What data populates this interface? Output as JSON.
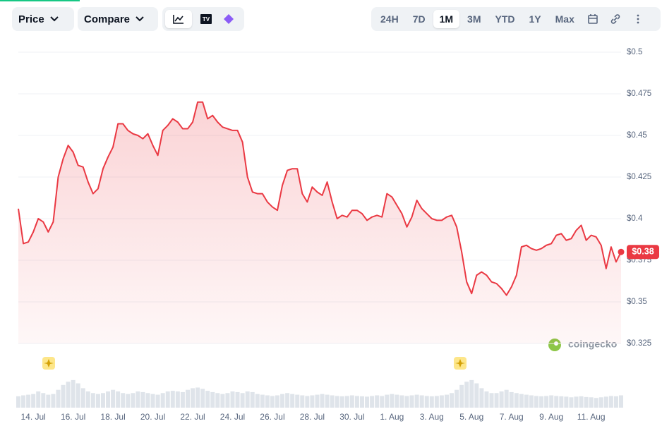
{
  "toolbar": {
    "selectors": [
      "Price",
      "Compare"
    ],
    "ranges": [
      "24H",
      "7D",
      "1M",
      "3M",
      "YTD",
      "1Y",
      "Max"
    ],
    "active_range": "1M"
  },
  "watermark": "coingecko",
  "chart_data": {
    "type": "area",
    "color": "#ea3943",
    "grid": true,
    "ylim": [
      0.325,
      0.5
    ],
    "yticks": [
      {
        "value": 0.325,
        "label": "$0.325"
      },
      {
        "value": 0.35,
        "label": "$0.35"
      },
      {
        "value": 0.375,
        "label": "$0.375"
      },
      {
        "value": 0.4,
        "label": "$0.4"
      },
      {
        "value": 0.425,
        "label": "$0.425"
      },
      {
        "value": 0.45,
        "label": "$0.45"
      },
      {
        "value": 0.475,
        "label": "$0.475"
      },
      {
        "value": 0.5,
        "label": "$0.5"
      }
    ],
    "last_price": {
      "value": 0.38,
      "label": "$0.38"
    },
    "categories": [
      null,
      null,
      null,
      "14. Jul",
      null,
      null,
      null,
      null,
      null,
      null,
      null,
      "16. Jul",
      null,
      null,
      null,
      null,
      null,
      null,
      null,
      "18. Jul",
      null,
      null,
      null,
      null,
      null,
      null,
      null,
      "20. Jul",
      null,
      null,
      null,
      null,
      null,
      null,
      null,
      "22. Jul",
      null,
      null,
      null,
      null,
      null,
      null,
      null,
      "24. Jul",
      null,
      null,
      null,
      null,
      null,
      null,
      null,
      "26. Jul",
      null,
      null,
      null,
      null,
      null,
      null,
      null,
      "28. Jul",
      null,
      null,
      null,
      null,
      null,
      null,
      null,
      "30. Jul",
      null,
      null,
      null,
      null,
      null,
      null,
      null,
      "1. Aug",
      null,
      null,
      null,
      null,
      null,
      null,
      null,
      "3. Aug",
      null,
      null,
      null,
      null,
      null,
      null,
      null,
      "5. Aug",
      null,
      null,
      null,
      null,
      null,
      null,
      null,
      "7. Aug",
      null,
      null,
      null,
      null,
      null,
      null,
      null,
      "9. Aug",
      null,
      null,
      null,
      null,
      null,
      null,
      null,
      "11. Aug",
      null,
      null,
      null,
      null,
      null,
      null
    ],
    "values": [
      0.406,
      0.385,
      0.386,
      0.392,
      0.4,
      0.398,
      0.392,
      0.398,
      0.425,
      0.436,
      0.444,
      0.44,
      0.432,
      0.431,
      0.422,
      0.415,
      0.418,
      0.43,
      0.437,
      0.443,
      0.457,
      0.457,
      0.453,
      0.451,
      0.45,
      0.448,
      0.451,
      0.444,
      0.438,
      0.453,
      0.456,
      0.46,
      0.458,
      0.454,
      0.454,
      0.458,
      0.47,
      0.47,
      0.46,
      0.462,
      0.458,
      0.455,
      0.454,
      0.453,
      0.453,
      0.446,
      0.425,
      0.416,
      0.415,
      0.415,
      0.41,
      0.407,
      0.405,
      0.42,
      0.429,
      0.43,
      0.43,
      0.415,
      0.41,
      0.419,
      0.416,
      0.414,
      0.422,
      0.41,
      0.4,
      0.402,
      0.401,
      0.405,
      0.405,
      0.403,
      0.399,
      0.401,
      0.402,
      0.401,
      0.415,
      0.413,
      0.408,
      0.403,
      0.395,
      0.401,
      0.411,
      0.406,
      0.403,
      0.4,
      0.399,
      0.399,
      0.401,
      0.402,
      0.395,
      0.38,
      0.362,
      0.355,
      0.366,
      0.368,
      0.366,
      0.362,
      0.361,
      0.358,
      0.354,
      0.359,
      0.366,
      0.383,
      0.384,
      0.382,
      0.381,
      0.382,
      0.384,
      0.385,
      0.39,
      0.391,
      0.387,
      0.388,
      0.393,
      0.396,
      0.387,
      0.39,
      0.389,
      0.384,
      0.37,
      0.383,
      0.374,
      0.38
    ],
    "volume": {
      "color": "#dfe4ea",
      "values": [
        0.35,
        0.38,
        0.4,
        0.42,
        0.5,
        0.45,
        0.4,
        0.42,
        0.55,
        0.7,
        0.8,
        0.85,
        0.75,
        0.6,
        0.5,
        0.45,
        0.42,
        0.45,
        0.5,
        0.55,
        0.5,
        0.45,
        0.42,
        0.45,
        0.5,
        0.48,
        0.45,
        0.42,
        0.4,
        0.45,
        0.5,
        0.52,
        0.5,
        0.48,
        0.55,
        0.6,
        0.62,
        0.58,
        0.52,
        0.48,
        0.45,
        0.42,
        0.45,
        0.5,
        0.48,
        0.45,
        0.5,
        0.48,
        0.42,
        0.4,
        0.38,
        0.36,
        0.38,
        0.42,
        0.45,
        0.42,
        0.4,
        0.38,
        0.36,
        0.38,
        0.4,
        0.42,
        0.4,
        0.38,
        0.36,
        0.35,
        0.36,
        0.38,
        0.36,
        0.35,
        0.34,
        0.36,
        0.38,
        0.36,
        0.4,
        0.42,
        0.4,
        0.38,
        0.36,
        0.38,
        0.4,
        0.38,
        0.36,
        0.35,
        0.36,
        0.38,
        0.4,
        0.45,
        0.55,
        0.7,
        0.8,
        0.85,
        0.75,
        0.6,
        0.5,
        0.45,
        0.45,
        0.5,
        0.55,
        0.48,
        0.45,
        0.42,
        0.4,
        0.38,
        0.36,
        0.35,
        0.36,
        0.38,
        0.36,
        0.35,
        0.34,
        0.32,
        0.34,
        0.35,
        0.33,
        0.32,
        0.3,
        0.32,
        0.34,
        0.36,
        0.35,
        0.38
      ]
    }
  }
}
